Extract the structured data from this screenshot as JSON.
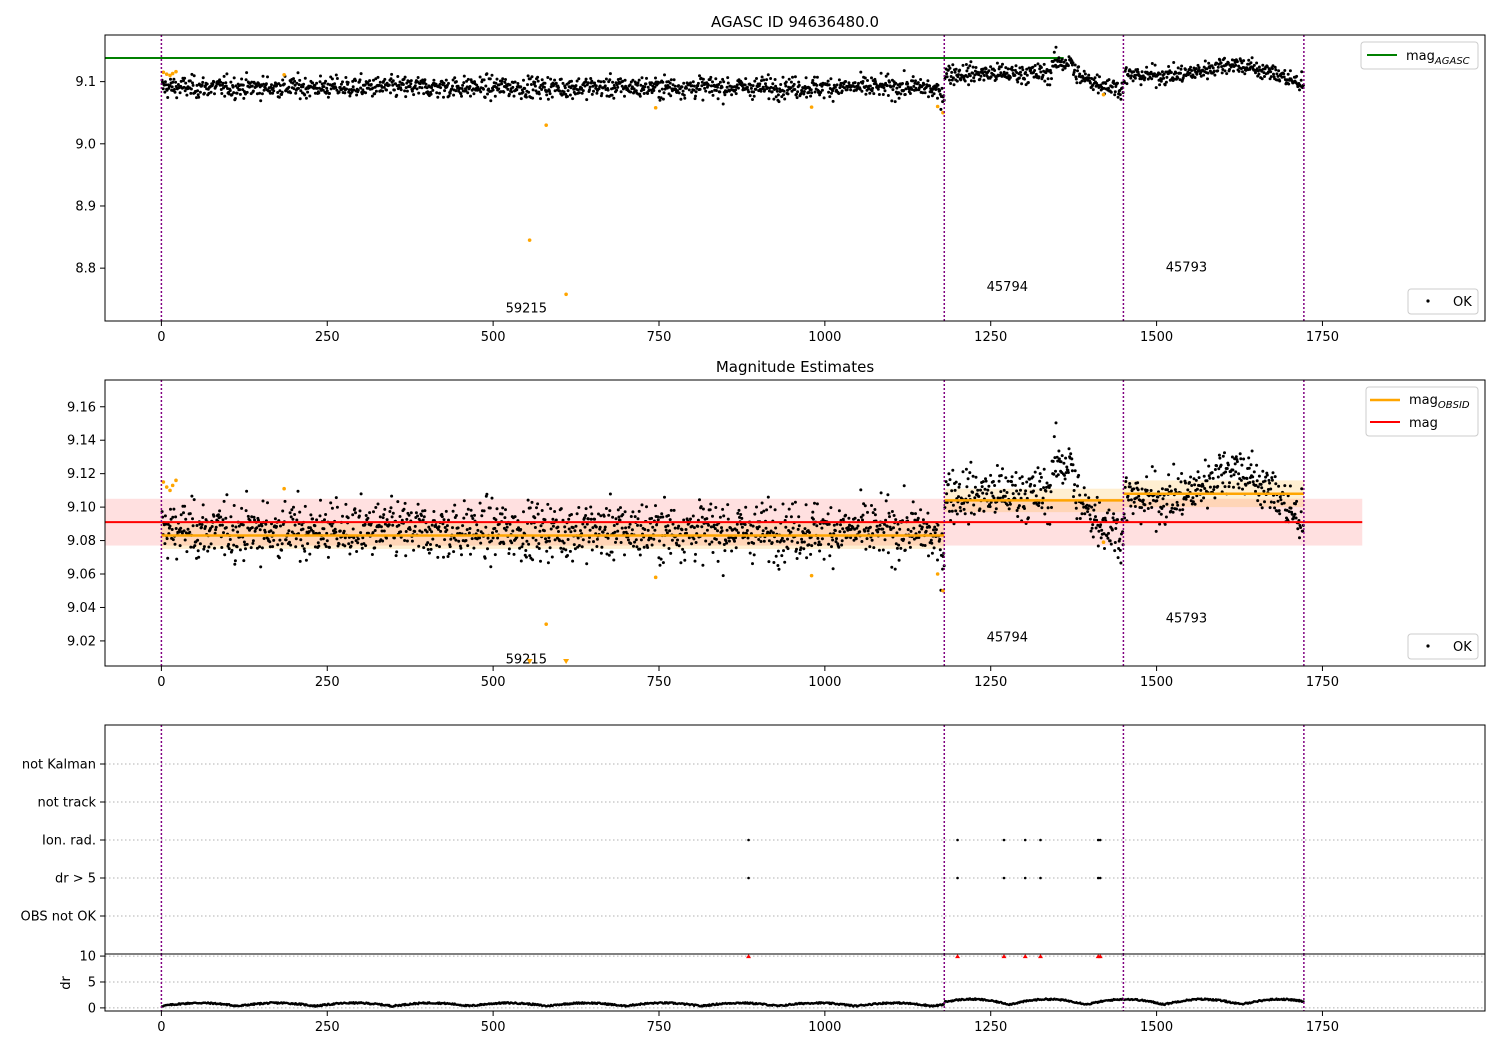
{
  "chart_data": [
    {
      "type": "scatter",
      "title": "AGASC ID 94636480.0",
      "xlabel": "",
      "ylabel": "",
      "xlim": [
        -85,
        1995
      ],
      "ylim": [
        8.715,
        9.175
      ],
      "grid": false,
      "xticks": [
        "0",
        "250",
        "500",
        "750",
        "1000",
        "1250",
        "1500",
        "1750"
      ],
      "yticks": [
        "8.8",
        "8.9",
        "9.0",
        "9.1"
      ],
      "hlines": [
        {
          "name": "mag_AGASC",
          "y": 9.138,
          "x": [
            -85,
            1360
          ],
          "color": "#008000"
        }
      ],
      "legend": {
        "placement": "upper-right",
        "entries": [
          {
            "label": "mag",
            "sub": "AGASC"
          }
        ]
      },
      "legend2": {
        "placement": "lower-right",
        "entries": [
          {
            "label": "OK"
          }
        ]
      },
      "boundaries": [
        0,
        1180,
        1450,
        1722
      ],
      "segments": [
        {
          "x0": 0,
          "x1": 1180,
          "mean": 9.086,
          "mode": "flat",
          "spread": 0.0085
        },
        {
          "x0": 1180,
          "x1": 1450,
          "mean": 9.108,
          "mode": "dip",
          "spread": 0.008
        },
        {
          "x0": 1450,
          "x1": 1722,
          "mean": 9.109,
          "mode": "bump",
          "spread": 0.0075
        }
      ],
      "outliers": [
        {
          "x": 3,
          "y": 9.115
        },
        {
          "x": 8,
          "y": 9.112
        },
        {
          "x": 13,
          "y": 9.11
        },
        {
          "x": 17,
          "y": 9.113
        },
        {
          "x": 22,
          "y": 9.116
        },
        {
          "x": 185,
          "y": 9.111
        },
        {
          "x": 555,
          "y": 8.845
        },
        {
          "x": 580,
          "y": 9.03
        },
        {
          "x": 610,
          "y": 8.758
        },
        {
          "x": 745,
          "y": 9.058
        },
        {
          "x": 980,
          "y": 9.059
        },
        {
          "x": 1170,
          "y": 9.06
        },
        {
          "x": 1178,
          "y": 9.05
        },
        {
          "x": 1420,
          "y": 9.079
        }
      ],
      "annotations": [
        {
          "text": "59215",
          "x": 555,
          "y": 8.737
        },
        {
          "text": "45794",
          "x": 1280,
          "y": 8.771
        },
        {
          "text": "45793",
          "x": 1550,
          "y": 8.803
        }
      ],
      "colors": {
        "ok": "#000000",
        "outlier": "#ffa500",
        "agasc": "#008000",
        "boundary": "#800080"
      }
    },
    {
      "type": "scatter",
      "title": "Magnitude Estimates",
      "xlabel": "",
      "ylabel": "",
      "xlim": [
        -85,
        1995
      ],
      "ylim": [
        9.005,
        9.176
      ],
      "grid": false,
      "xticks": [
        "0",
        "250",
        "500",
        "750",
        "1000",
        "1250",
        "1500",
        "1750"
      ],
      "yticks": [
        "9.02",
        "9.04",
        "9.06",
        "9.08",
        "9.10",
        "9.12",
        "9.14",
        "9.16"
      ],
      "mag": {
        "y": 9.091,
        "band": [
          9.077,
          9.105
        ],
        "x": [
          -85,
          1810
        ],
        "color": "#ff0000"
      },
      "mag_obsid": [
        {
          "x0": 0,
          "x1": 1180,
          "y": 9.083,
          "band": [
            9.075,
            9.091
          ]
        },
        {
          "x0": 1180,
          "x1": 1450,
          "y": 9.104,
          "band": [
            9.097,
            9.111
          ]
        },
        {
          "x0": 1450,
          "x1": 1722,
          "y": 9.108,
          "band": [
            9.1,
            9.116
          ]
        }
      ],
      "legend": {
        "placement": "upper-right",
        "entries": [
          {
            "label": "mag",
            "sub": "OBSID"
          },
          {
            "label": "mag",
            "sub": ""
          }
        ]
      },
      "legend2": {
        "placement": "lower-right",
        "entries": [
          {
            "label": "OK"
          }
        ]
      },
      "boundaries": [
        0,
        1180,
        1450,
        1722
      ],
      "lower_limits": [
        {
          "x": 555
        },
        {
          "x": 610
        }
      ],
      "annotations": [
        {
          "text": "59215",
          "x": 555,
          "y": 9.0095
        },
        {
          "text": "45794",
          "x": 1280,
          "y": 9.0225
        },
        {
          "text": "45793",
          "x": 1550,
          "y": 9.034
        }
      ],
      "colors": {
        "ok": "#000000",
        "outlier": "#ffa500",
        "mag": "#ff0000",
        "obsid": "#ffa500"
      }
    },
    {
      "type": "scatter",
      "title": "",
      "xlim": [
        -85,
        1995
      ],
      "categories": [
        "not Kalman",
        "not track",
        "Ion. rad.",
        "dr > 5",
        "OBS not OK"
      ],
      "grid": true,
      "flags": {
        "Ion. rad.": [
          885,
          1200,
          1270,
          1302,
          1325,
          1412,
          1415
        ],
        "dr > 5": [
          885,
          1200,
          1270,
          1302,
          1325,
          1412,
          1415
        ]
      },
      "boundaries": [
        0,
        1180,
        1450,
        1722
      ]
    },
    {
      "type": "scatter",
      "title": "",
      "xlabel": "",
      "ylabel": "dr",
      "xlim": [
        -85,
        1995
      ],
      "ylim": [
        -0.6,
        10.4
      ],
      "xticks": [
        "0",
        "250",
        "500",
        "750",
        "1000",
        "1250",
        "1500",
        "1750"
      ],
      "yticks": [
        "0",
        "5",
        "10"
      ],
      "grid": true,
      "clipped": [
        885,
        1200,
        1270,
        1302,
        1325,
        1412,
        1415
      ],
      "boundaries": [
        0,
        1180,
        1450,
        1722
      ],
      "colors": {
        "clipped": "#ff0000"
      }
    }
  ]
}
